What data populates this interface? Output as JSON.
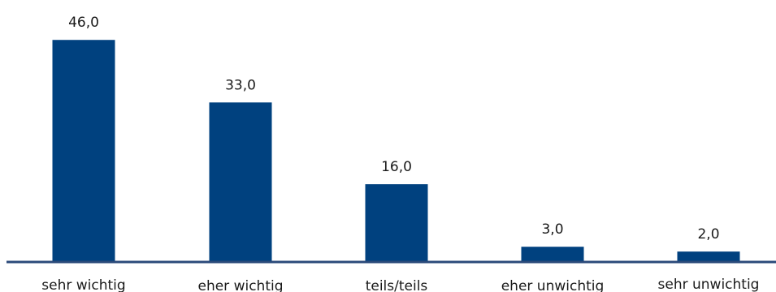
{
  "chart_data": {
    "type": "bar",
    "categories": [
      "sehr wichtig",
      "eher wichtig",
      "teils/teils",
      "eher unwichtig",
      "sehr unwichtig"
    ],
    "values": [
      46.0,
      33.0,
      16.0,
      3.0,
      2.0
    ],
    "value_labels": [
      "46,0",
      "33,0",
      "16,0",
      "3,0",
      "2,0"
    ],
    "ylim": [
      0,
      50
    ],
    "grid": false,
    "legend": "none",
    "colors": {
      "bar": "#00417f",
      "axis": "#2b4a7a"
    }
  }
}
